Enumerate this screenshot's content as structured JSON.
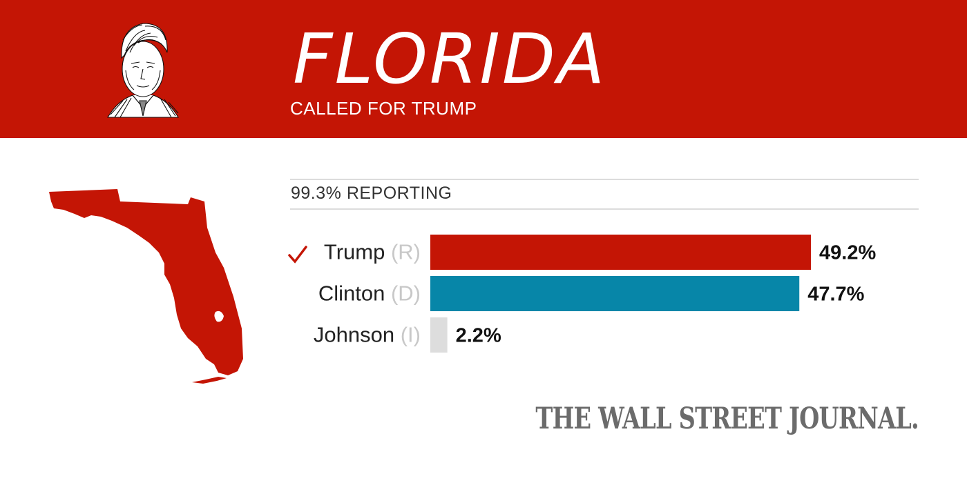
{
  "header": {
    "state": "FLORIDA",
    "status": "CALLED FOR TRUMP",
    "winner_portrait": "trump-engraving-portrait"
  },
  "reporting": "99.3% REPORTING",
  "brand": "THE WALL STREET JOURNAL.",
  "colors": {
    "banner": "#c41505",
    "republican": "#c41505",
    "democrat": "#0786a8",
    "independent": "#dddddd"
  },
  "chart_data": {
    "type": "bar",
    "orientation": "horizontal",
    "categories": [
      "Trump",
      "Clinton",
      "Johnson"
    ],
    "parties": [
      "(R)",
      "(D)",
      "(I)"
    ],
    "values": [
      49.2,
      47.7,
      2.2
    ],
    "value_labels": [
      "49.2%",
      "47.7%",
      "2.2%"
    ],
    "winner": "Trump",
    "winner_icon": "check-icon",
    "bar_colors": [
      "#c41505",
      "#0786a8",
      "#dddddd"
    ],
    "xlim": [
      0,
      50
    ]
  }
}
